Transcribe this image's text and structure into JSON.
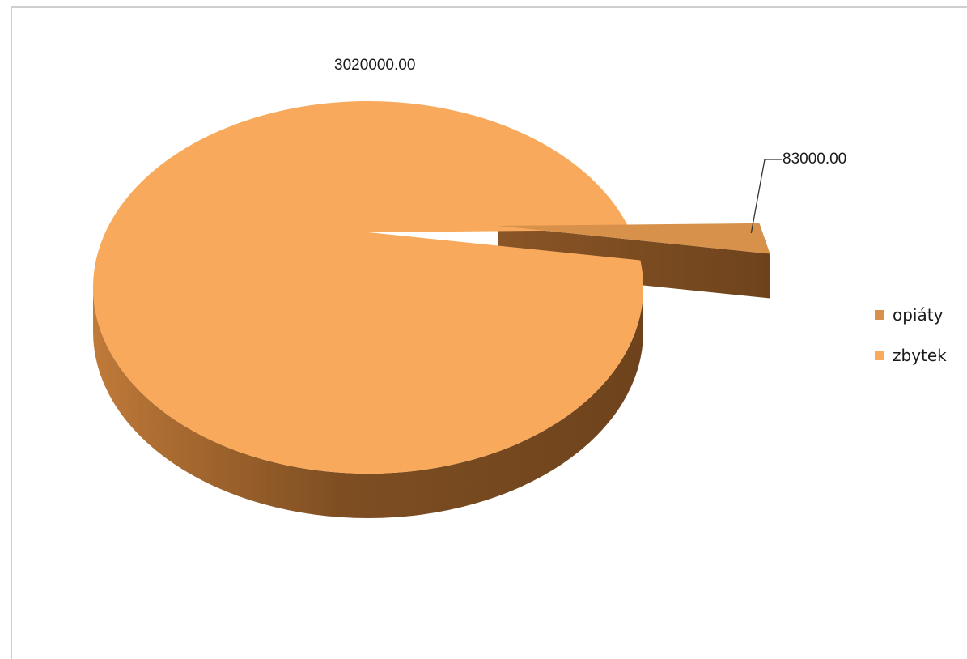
{
  "chart_data": {
    "type": "pie",
    "style": "3d-exploded",
    "categories": [
      "opiáty",
      "zbytek"
    ],
    "values": [
      83000,
      3020000
    ],
    "data_labels": [
      "83000.00",
      "3020000.00"
    ],
    "colors": {
      "opiáty": "#D8914A",
      "zbytek": "#F8A95C",
      "side_dark": "#7A4A20",
      "side_mid": "#B87232"
    },
    "legend": {
      "position": "right",
      "entries": [
        "opiáty",
        "zbytek"
      ]
    },
    "exploded": [
      "opiáty"
    ]
  }
}
